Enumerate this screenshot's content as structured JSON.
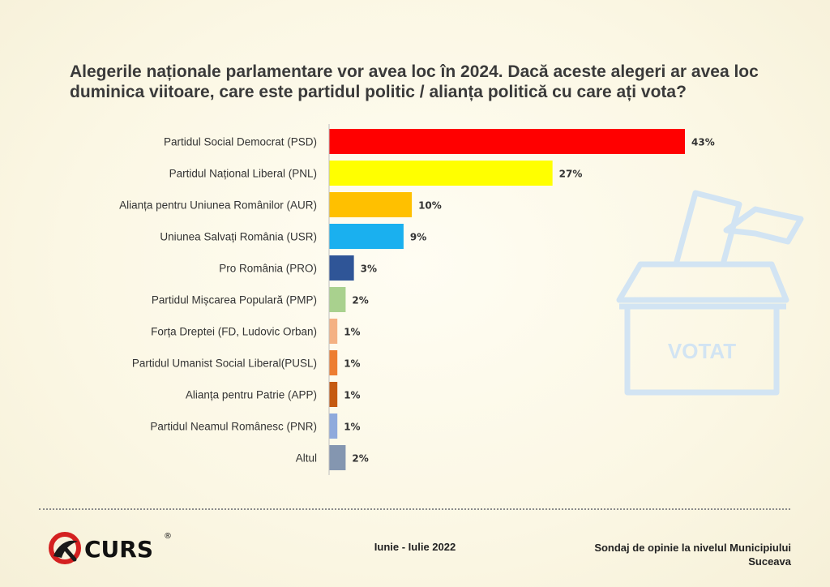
{
  "title": "Alegerile naționale parlamentare vor avea loc în 2024. Dacă aceste alegeri ar avea loc duminica viitoare, care este partidul politic / alianța politică cu care ați vota?",
  "ballot": {
    "label": "VOTAT",
    "icon": "ballot-box-icon"
  },
  "chart_data": {
    "type": "bar",
    "orientation": "horizontal",
    "title": "Alegerile naționale parlamentare vor avea loc în 2024. Dacă aceste alegeri ar avea loc duminica viitoare, care este partidul politic / alianța politică cu care ați vota?",
    "categories": [
      "Partidul Social Democrat (PSD)",
      "Partidul Național Liberal (PNL)",
      "Alianța pentru Uniunea Românilor (AUR)",
      "Uniunea Salvați România (USR)",
      "Pro România (PRO)",
      "Partidul Mișcarea Populară (PMP)",
      "Forța Dreptei (FD, Ludovic Orban)",
      "Partidul Umanist Social Liberal(PUSL)",
      "Alianța pentru Patrie (APP)",
      "Partidul Neamul Românesc (PNR)",
      "Altul"
    ],
    "values": [
      43,
      27,
      10,
      9,
      3,
      2,
      1,
      1,
      1,
      1,
      2
    ],
    "value_labels": [
      "43%",
      "27%",
      "10%",
      "9%",
      "3%",
      "2%",
      "1%",
      "1%",
      "1%",
      "1%",
      "2%"
    ],
    "colors": [
      "#ff0000",
      "#ffff00",
      "#ffc000",
      "#1ab0ef",
      "#2f5597",
      "#a9d18e",
      "#f4b183",
      "#ed7d31",
      "#c55a11",
      "#8faadc",
      "#8496b0"
    ],
    "xlim": [
      0,
      43
    ],
    "grid": false,
    "legend": "none"
  },
  "footer": {
    "logo_text": "CURS",
    "logo_mark": "®",
    "date": "Iunie - Iulie 2022",
    "source_line1": "Sondaj de opinie la nivelul Municipiului",
    "source_line2": "Suceava"
  }
}
